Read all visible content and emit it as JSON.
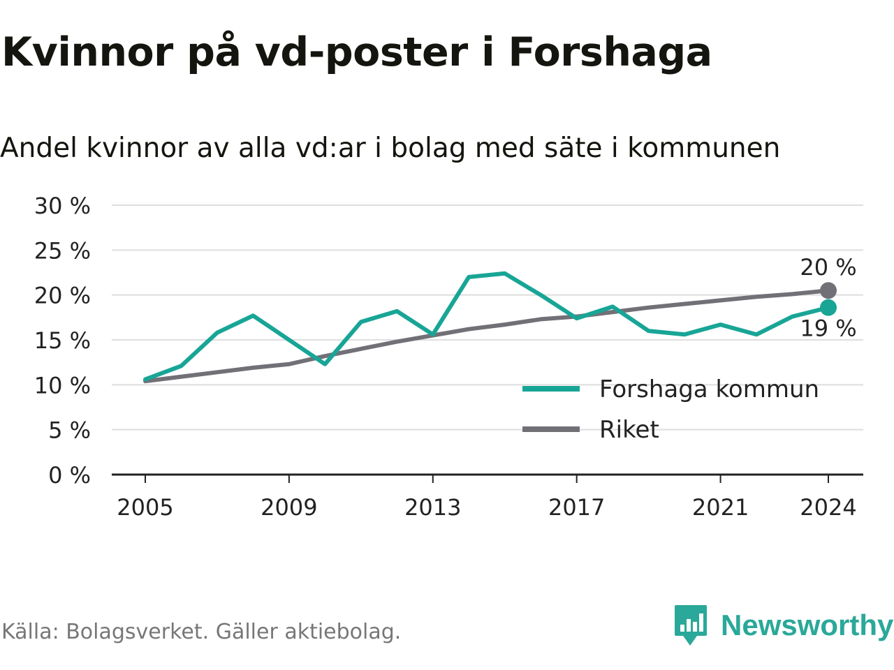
{
  "title": "Kvinnor på vd-poster i Forshaga",
  "subtitle": "Andel kvinnor av alla vd:ar i bolag med säte i kommunen",
  "source": "Källa: Bolagsverket. Gäller aktiebolag.",
  "brand": {
    "name": "Newsworthy",
    "icon": "newsworthy-logo-icon",
    "color": "#2aa899"
  },
  "chart_data": {
    "type": "line",
    "title": "Kvinnor på vd-poster i Forshaga",
    "subtitle": "Andel kvinnor av alla vd:ar i bolag med säte i kommunen",
    "x": [
      2005,
      2006,
      2007,
      2008,
      2009,
      2010,
      2011,
      2012,
      2013,
      2014,
      2015,
      2016,
      2017,
      2018,
      2019,
      2020,
      2021,
      2022,
      2023,
      2024
    ],
    "series": [
      {
        "name": "Forshaga kommun",
        "color": "#18a596",
        "values": [
          10.6,
          12.1,
          15.8,
          17.7,
          15.0,
          12.3,
          17.0,
          18.2,
          15.6,
          22.0,
          22.4,
          20.0,
          17.4,
          18.7,
          16.0,
          15.6,
          16.7,
          15.6,
          17.6,
          18.6
        ],
        "end_label": "19 %"
      },
      {
        "name": "Riket",
        "color": "#727077",
        "values": [
          10.4,
          10.9,
          11.4,
          11.9,
          12.3,
          13.2,
          14.0,
          14.8,
          15.5,
          16.2,
          16.7,
          17.3,
          17.6,
          18.1,
          18.6,
          19.0,
          19.4,
          19.8,
          20.1,
          20.5
        ],
        "end_label": "20 %"
      }
    ],
    "y_ticks": [
      "0 %",
      "5 %",
      "10 %",
      "15 %",
      "20 %",
      "25 %",
      "30 %"
    ],
    "y_tick_values": [
      0,
      5,
      10,
      15,
      20,
      25,
      30
    ],
    "x_ticks": [
      "2005",
      "2009",
      "2013",
      "2017",
      "2021",
      "2024"
    ],
    "x_tick_values": [
      2005,
      2009,
      2013,
      2017,
      2021,
      2024
    ],
    "ylim": [
      0,
      30
    ],
    "xlim": [
      2005,
      2024
    ],
    "grid": true,
    "legend_position": "bottom-right",
    "xlabel": "",
    "ylabel": ""
  }
}
